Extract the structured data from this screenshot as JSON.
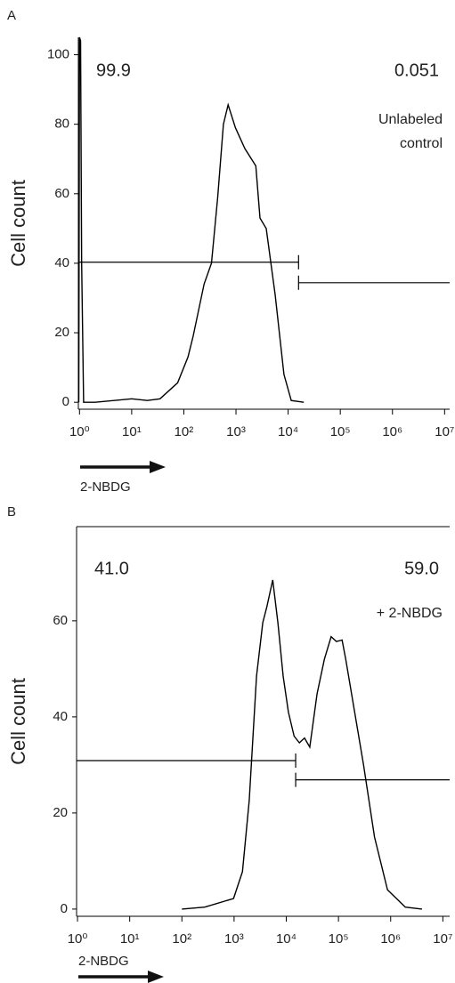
{
  "chart_data": [
    {
      "type": "line",
      "panel_label": "A",
      "ylabel": "Cell count",
      "xlabel": "2-NBDG",
      "xlog": true,
      "xlim": [
        0.95,
        12500000
      ],
      "ylim": [
        -2,
        105
      ],
      "xticks": [
        {
          "value": 1,
          "label": "10⁰"
        },
        {
          "value": 10,
          "label": "10¹"
        },
        {
          "value": 100,
          "label": "10²"
        },
        {
          "value": 1000,
          "label": "10³"
        },
        {
          "value": 10000,
          "label": "10⁴"
        },
        {
          "value": 100000,
          "label": "10⁵"
        },
        {
          "value": 1000000,
          "label": "10⁶"
        },
        {
          "value": 10000000,
          "label": "10⁷"
        }
      ],
      "yticks": [
        0,
        20,
        40,
        60,
        80,
        100
      ],
      "series": [
        {
          "color": "#000000",
          "x": [
            0.97,
            1.0,
            1.05,
            1.1,
            1.2,
            2.0,
            10,
            20,
            35,
            76,
            120,
            151,
            245,
            339,
            447,
            575,
            708,
            977,
            1479,
            2399,
            2884,
            3802,
            5623,
            8318,
            11482,
            19953
          ],
          "values": [
            0,
            105,
            104,
            40,
            0,
            0,
            1,
            0.5,
            1,
            5.6,
            13,
            19,
            34,
            40,
            59,
            80,
            85.6,
            79,
            73,
            68,
            53,
            50,
            31,
            8,
            0.5,
            0
          ]
        }
      ],
      "gates": [
        {
          "x": [
            0.95,
            15849
          ],
          "y": 40.3,
          "label": "99.9"
        },
        {
          "x": [
            15849,
            12500000
          ],
          "y": 34.4,
          "label": "0.051"
        }
      ],
      "annotation": [
        "Unlabeled",
        "control"
      ]
    },
    {
      "type": "line",
      "panel_label": "B",
      "ylabel": "Cell count",
      "xlabel": "2-NBDG",
      "xlog": true,
      "xlim": [
        0.96,
        13500000
      ],
      "ylim": [
        -1.5,
        79.6
      ],
      "xticks": [
        {
          "value": 1,
          "label": "10⁰"
        },
        {
          "value": 10,
          "label": "10¹"
        },
        {
          "value": 100,
          "label": "10²"
        },
        {
          "value": 1000,
          "label": "10³"
        },
        {
          "value": 10000,
          "label": "10⁴"
        },
        {
          "value": 100000,
          "label": "10⁵"
        },
        {
          "value": 1000000,
          "label": "10⁶"
        },
        {
          "value": 10000000,
          "label": "10⁷"
        }
      ],
      "yticks": [
        0,
        20,
        40,
        60
      ],
      "series": [
        {
          "color": "#000000",
          "x": [
            100,
            275,
            977,
            1445,
            1950,
            2692,
            3548,
            4266,
            5495,
            6918,
            8710,
            10965,
            14125,
            17783,
            22387,
            28184,
            38905,
            53703,
            72444,
            91201,
            117490,
            138038,
            204174,
            301995,
            489779,
            870964,
            1905461,
            3981072
          ],
          "values": [
            0,
            0.4,
            2.2,
            7.8,
            22.6,
            48.5,
            59.6,
            63,
            68.5,
            59.6,
            48.5,
            41,
            36,
            34.6,
            35.6,
            33.7,
            44.8,
            52,
            56.7,
            55.7,
            56,
            52,
            41,
            30,
            15,
            4,
            0.4,
            0
          ]
        }
      ],
      "gates": [
        {
          "x": [
            0.96,
            15136
          ],
          "y": 30.9,
          "label": "41.0"
        },
        {
          "x": [
            15136,
            13500000
          ],
          "y": 26.9,
          "label": "59.0"
        }
      ],
      "annotation": [
        "+ 2-NBDG"
      ]
    }
  ]
}
